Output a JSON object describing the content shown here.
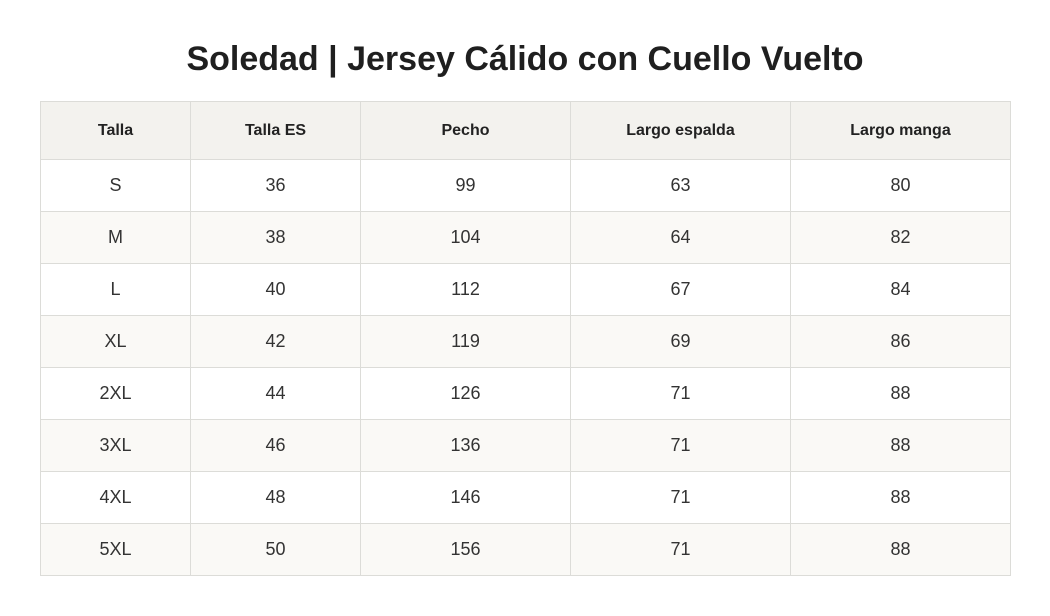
{
  "page": {
    "title": "Soledad | Jersey Cálido con Cuello Vuelto"
  },
  "colors": {
    "header_background": "#f3f2ee",
    "row_alt_background": "#faf9f6",
    "border": "#dcdcd8",
    "text": "#222222"
  },
  "table": {
    "headers": [
      "Talla",
      "Talla ES",
      "Pecho",
      "Largo espalda",
      "Largo manga"
    ],
    "rows": [
      [
        "S",
        "36",
        "99",
        "63",
        "80"
      ],
      [
        "M",
        "38",
        "104",
        "64",
        "82"
      ],
      [
        "L",
        "40",
        "112",
        "67",
        "84"
      ],
      [
        "XL",
        "42",
        "119",
        "69",
        "86"
      ],
      [
        "2XL",
        "44",
        "126",
        "71",
        "88"
      ],
      [
        "3XL",
        "46",
        "136",
        "71",
        "88"
      ],
      [
        "4XL",
        "48",
        "146",
        "71",
        "88"
      ],
      [
        "5XL",
        "50",
        "156",
        "71",
        "88"
      ]
    ]
  }
}
